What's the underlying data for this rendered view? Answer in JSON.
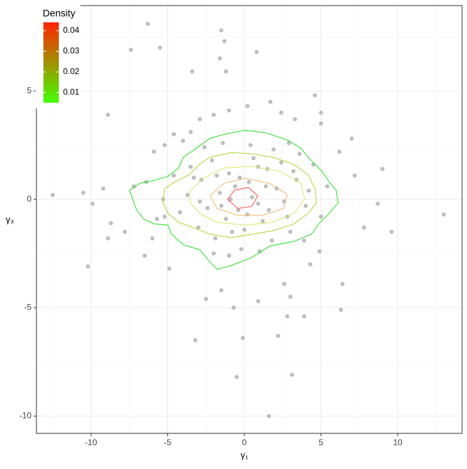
{
  "chart_data": {
    "type": "scatter",
    "x_label": "γ₁",
    "y_label": "γ₃",
    "xlim": [
      -13.56,
      14.2
    ],
    "ylim": [
      -10.8,
      8.94
    ],
    "xticks": [
      -10,
      -5,
      0,
      5,
      10
    ],
    "yticks": [
      -10,
      -5,
      0,
      5
    ],
    "xminor": [
      -12.5,
      -7.5,
      -2.5,
      2.5,
      7.5,
      12.5
    ],
    "yminor": [
      -7.5,
      -2.5,
      2.5,
      7.5
    ],
    "grid": true,
    "series": [
      {
        "color": "#bebebe",
        "x": [
          -6.3,
          -1.5,
          -1.3,
          -7.4,
          -5.5,
          0.8,
          -1.6,
          -1.2,
          -3.4,
          4.6,
          -8.9,
          -12.5,
          -10.5,
          -10.2,
          -9.9,
          13,
          9.6,
          9,
          8.7,
          7.8,
          7.2,
          7,
          6.2,
          6.4,
          6.3,
          3.9,
          2.8,
          2.2,
          3.1,
          1.6,
          -0.5,
          -0.1,
          -3.2,
          -0.7,
          0.9,
          -2.5,
          -1.5,
          -4.9,
          -6.5,
          -7.8,
          -8.7,
          -8.9,
          -9.2,
          -7.2,
          -5.9,
          -5.2,
          -4.6,
          -3.5,
          -2.9,
          -2,
          -1,
          0.2,
          1.7,
          2.4,
          3.3,
          5,
          5,
          3,
          2.6,
          4.3,
          4.9,
          -5.2,
          -6,
          -3.5,
          -2.8,
          -2.1,
          -1.6,
          -1,
          -0.4,
          0.3,
          0.9,
          1.5,
          2.1,
          2.8,
          3.4,
          4,
          4.5,
          -4.2,
          -3.7,
          -3,
          -2.4,
          -1.9,
          -1.2,
          -0.6,
          0,
          0.6,
          1.2,
          1.8,
          2.4,
          3,
          3.6,
          4.2,
          -4.6,
          -5.3,
          -5.7,
          -2.6,
          -1.4,
          0.4,
          1.9,
          2.9,
          -0.2,
          -1,
          1,
          -2,
          3.9,
          5,
          5.4,
          -6.4,
          -4,
          -0.9,
          0.5,
          -0.3,
          1.4,
          -1.8,
          2.6,
          -2.9,
          0.2,
          -0.8,
          1.6,
          -3.3,
          3.2,
          0.9,
          -1.5
        ],
        "y": [
          8.1,
          7.8,
          7.3,
          6.9,
          7,
          6.8,
          6.5,
          5.9,
          5.9,
          4.8,
          3.9,
          0.2,
          0.3,
          -3.1,
          -0.2,
          -0.7,
          -1.5,
          1.4,
          -0.2,
          -1.3,
          1.1,
          2.8,
          2.2,
          -3.9,
          -5.1,
          -5.4,
          -5.4,
          -6.3,
          -8.1,
          -10,
          -8.2,
          -6.4,
          -6.5,
          -5,
          -4.7,
          -4.6,
          -4.2,
          -3.2,
          -2.6,
          -1.5,
          -1.1,
          -1.8,
          0.5,
          0.6,
          2.2,
          2.5,
          3,
          3.1,
          3.7,
          3.9,
          4.1,
          4.3,
          4.5,
          4,
          3.7,
          4,
          3.5,
          -4.5,
          -3.9,
          -3,
          -2.4,
          -0.8,
          -1.8,
          1.5,
          0.9,
          1.8,
          0.3,
          1.2,
          -0.5,
          0.8,
          -0.2,
          1.4,
          0.5,
          -0.8,
          0.9,
          -0.3,
          1.6,
          -0.6,
          0.2,
          -1.3,
          -0.4,
          -1.8,
          -0.9,
          0.6,
          -1.4,
          1.9,
          -1,
          -1.9,
          1.7,
          -1.5,
          2.1,
          0.4,
          1.1,
          0,
          -0.9,
          2.4,
          2.6,
          2.5,
          2.3,
          2.6,
          -2.3,
          -2.6,
          -2.4,
          -2.5,
          -1.9,
          -0.8,
          0.6,
          0.8,
          2.7,
          0,
          0.1,
          1,
          0.6,
          1.1,
          -0.1,
          -0.1,
          -0.7,
          -1.5,
          -0.5,
          1,
          1.3,
          1.5,
          -0.3
        ]
      }
    ],
    "contours": [
      {
        "color": "#22dd22",
        "x": [
          -7.49,
          -6.8,
          -5.89,
          -4.98,
          -4.29,
          -3.97,
          -3.15,
          -2.24,
          -1.32,
          0.05,
          1.42,
          2.79,
          3.7,
          4.16,
          5.07,
          5.53,
          5.98,
          6.12,
          5.53,
          4.84,
          4.38,
          3.24,
          1.64,
          0.5,
          -0.87,
          -1.78,
          -2.24,
          -2.92,
          -3.97,
          -4.75,
          -4.98,
          -5.89,
          -6.58,
          -7.03,
          -7.49
        ],
        "y": [
          0.42,
          0.74,
          0.87,
          1.06,
          1.45,
          1.94,
          2.35,
          2.81,
          3,
          3.19,
          3.06,
          2.74,
          2.35,
          1.94,
          1.29,
          0.81,
          0.42,
          -0.16,
          -0.65,
          -1.13,
          -1.61,
          -1.94,
          -2.16,
          -2.68,
          -3.06,
          -3.23,
          -2.9,
          -2.32,
          -2.1,
          -1.61,
          -1.19,
          -1.13,
          -0.9,
          -0.48,
          0.42
        ]
      },
      {
        "color": "#a6d82a",
        "x": [
          -5.21,
          -4.52,
          -3.61,
          -2.92,
          -2.24,
          -0.87,
          0.5,
          1.87,
          3.24,
          4.16,
          4.61,
          4.7,
          4.16,
          3.24,
          1.87,
          0.5,
          -0.87,
          -2.24,
          -3.38,
          -4.29,
          -4.98,
          -5.3,
          -5.21
        ],
        "y": [
          0.48,
          0.81,
          1.13,
          1.61,
          1.94,
          2.16,
          2.1,
          1.94,
          1.61,
          1.13,
          0.48,
          -0.16,
          -0.65,
          -1.13,
          -1.45,
          -1.61,
          -1.77,
          -1.61,
          -1.29,
          -1.06,
          -0.65,
          -0.16,
          0.48
        ]
      },
      {
        "color": "#e3e06a",
        "x": [
          -3.61,
          -2.69,
          -1.32,
          0.5,
          2.33,
          3.7,
          3.93,
          3.24,
          1.87,
          0.05,
          -1.78,
          -2.92,
          -3.52,
          -3.61
        ],
        "y": [
          0.32,
          0.97,
          1.45,
          1.52,
          1.29,
          0.74,
          0,
          -0.65,
          -1.06,
          -1.19,
          -1.06,
          -0.65,
          -0.16,
          0.32
        ]
      },
      {
        "color": "#f5b26a",
        "x": [
          -2.24,
          -1.32,
          0.05,
          1.64,
          2.79,
          2.56,
          1.19,
          -0.41,
          -1.78,
          -2.24
        ],
        "y": [
          0.16,
          0.74,
          0.97,
          0.74,
          0.23,
          -0.42,
          -0.74,
          -0.74,
          -0.42,
          0.16
        ]
      },
      {
        "color": "#ff4a4a",
        "x": [
          -1.1,
          -0.64,
          0.27,
          0.87,
          0.5,
          -0.41,
          -1.1
        ],
        "y": [
          0,
          0.42,
          0.55,
          0.16,
          -0.32,
          -0.42,
          0
        ]
      }
    ],
    "legend": {
      "title": "Density",
      "ticks": [
        0.01,
        0.02,
        0.03,
        0.04
      ],
      "lim": [
        0.0051,
        0.044
      ],
      "colors": [
        "#44ff00",
        "#ff2200"
      ]
    }
  }
}
